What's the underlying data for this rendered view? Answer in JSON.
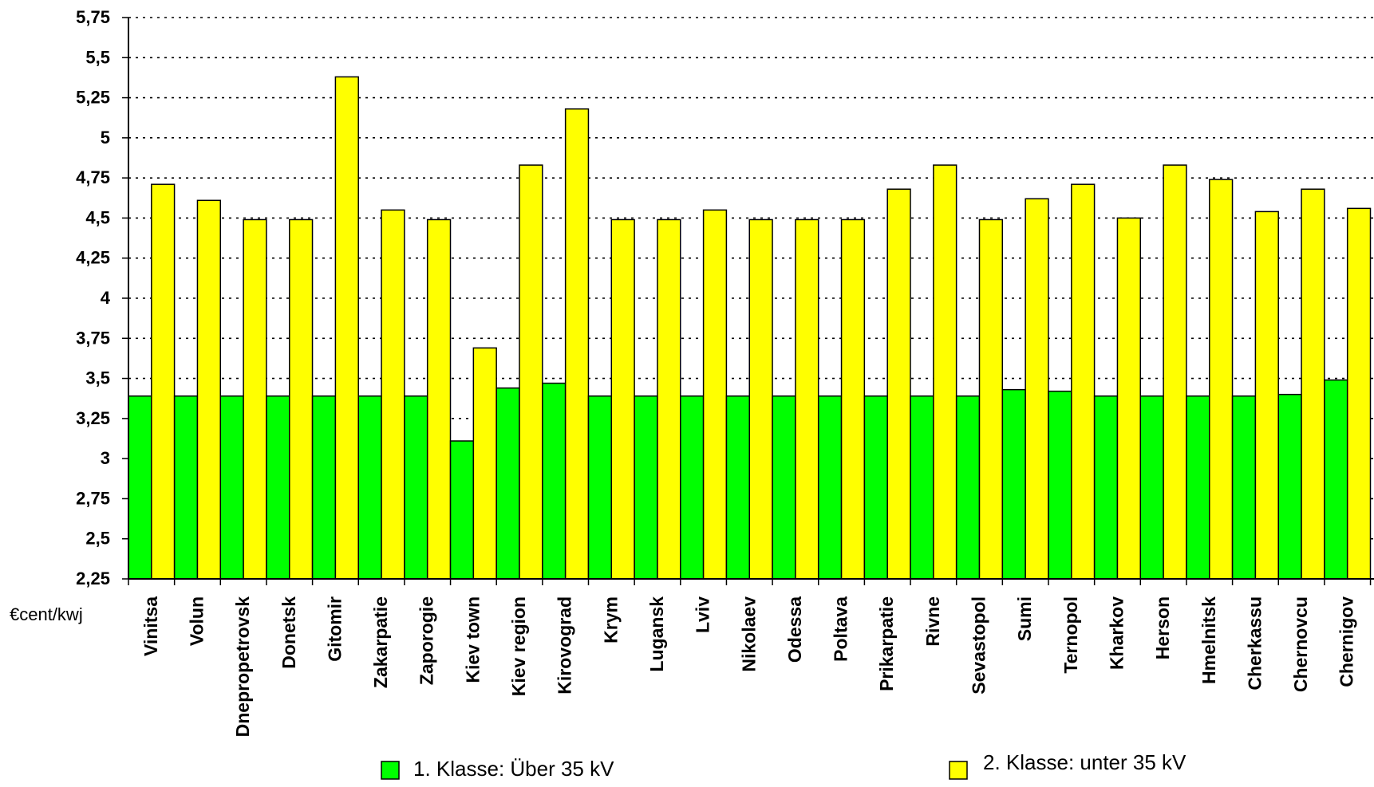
{
  "chart_data": {
    "type": "bar",
    "categories": [
      "Vinitsa",
      "Volun",
      "Dnepropetrovsk",
      "Donetsk",
      "Gitomir",
      "Zakarpatie",
      "Zaporogie",
      "Kiev town",
      "Kiev region",
      "Kirovograd",
      "Krym",
      "Lugansk",
      "Lviv",
      "Nikolaev",
      "Odessa",
      "Poltava",
      "Prikarpatie",
      "Rivne",
      "Sevastopol",
      "Sumi",
      "Ternopol",
      "Kharkov",
      "Herson",
      "Hmelnitsk",
      "Cherkassu",
      "Chernovcu",
      "Chernigov"
    ],
    "series": [
      {
        "name": "1. Klasse: Über 35 kV",
        "color": "#00ff00",
        "values": [
          3.39,
          3.39,
          3.39,
          3.39,
          3.39,
          3.39,
          3.39,
          3.11,
          3.44,
          3.47,
          3.39,
          3.39,
          3.39,
          3.39,
          3.39,
          3.39,
          3.39,
          3.39,
          3.39,
          3.43,
          3.42,
          3.39,
          3.39,
          3.39,
          3.39,
          3.4,
          3.49
        ]
      },
      {
        "name": "2. Klasse: unter 35 kV",
        "color": "#ffff00",
        "values": [
          4.71,
          4.61,
          4.49,
          4.49,
          5.38,
          4.55,
          4.49,
          3.69,
          4.83,
          5.18,
          4.49,
          4.49,
          4.55,
          4.49,
          4.49,
          4.49,
          4.68,
          4.83,
          4.49,
          4.62,
          4.71,
          4.5,
          4.83,
          4.74,
          4.54,
          4.68,
          4.56
        ]
      }
    ],
    "yticks": [
      "2,25",
      "2,5",
      "2,75",
      "3",
      "3,25",
      "3,5",
      "3,75",
      "4",
      "4,25",
      "4,5",
      "4,75",
      "5",
      "5,25",
      "5,5",
      "5,75"
    ],
    "ylim": [
      2.25,
      5.75
    ],
    "unit_label": "€cent/kwj",
    "grid": true,
    "legend_position": "bottom"
  }
}
